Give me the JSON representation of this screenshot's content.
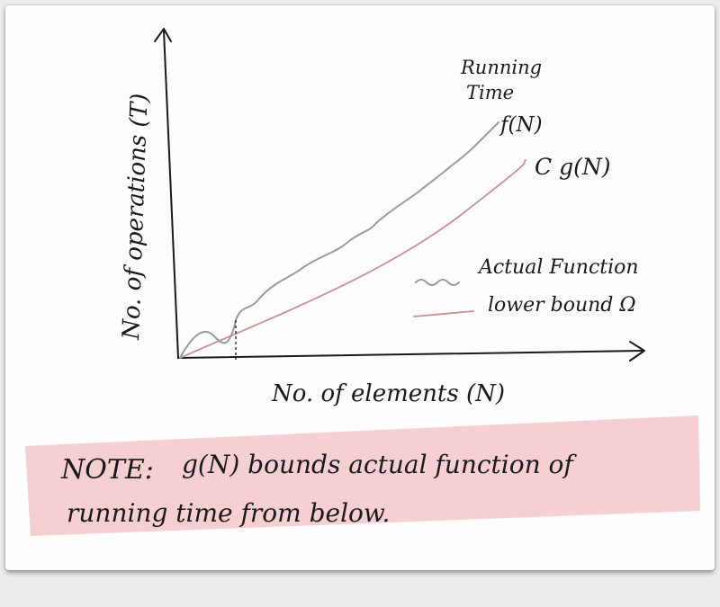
{
  "diagram": {
    "ylabel": "No. of operations (T)",
    "xlabel": "No. of elements (N)",
    "running_time_label": [
      "Running",
      "Time"
    ],
    "curve_actual_label": "f(N)",
    "curve_bound_label": "C g(N)",
    "legend": {
      "actual": "Actual Function",
      "bound": "lower bound Ω"
    },
    "colors": {
      "actual": "#9a9a9a",
      "bound": "#c98f95",
      "note_background": "#f5cfd2",
      "ink": "#1a1a1a"
    }
  },
  "note": {
    "prefix": "NOTE:",
    "line1": "g(N) bounds actual function of",
    "line2": "running time from below."
  }
}
